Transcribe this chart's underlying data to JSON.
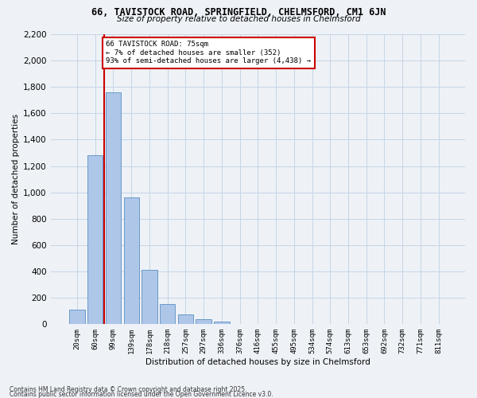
{
  "title1": "66, TAVISTOCK ROAD, SPRINGFIELD, CHELMSFORD, CM1 6JN",
  "title2": "Size of property relative to detached houses in Chelmsford",
  "xlabel": "Distribution of detached houses by size in Chelmsford",
  "ylabel": "Number of detached properties",
  "categories": [
    "20sqm",
    "60sqm",
    "99sqm",
    "139sqm",
    "178sqm",
    "218sqm",
    "257sqm",
    "297sqm",
    "336sqm",
    "376sqm",
    "416sqm",
    "455sqm",
    "495sqm",
    "534sqm",
    "574sqm",
    "613sqm",
    "653sqm",
    "692sqm",
    "732sqm",
    "771sqm",
    "811sqm"
  ],
  "values": [
    110,
    1280,
    1760,
    960,
    415,
    155,
    75,
    40,
    22,
    0,
    0,
    0,
    0,
    0,
    0,
    0,
    0,
    0,
    0,
    0,
    0
  ],
  "bar_color": "#aec6e8",
  "bar_edge_color": "#5a8fc2",
  "annotation_line1": "66 TAVISTOCK ROAD: 75sqm",
  "annotation_line2": "← 7% of detached houses are smaller (352)",
  "annotation_line3": "93% of semi-detached houses are larger (4,438) →",
  "vline_color": "#cc0000",
  "vline_x": 1.5,
  "ylim": [
    0,
    2200
  ],
  "yticks": [
    0,
    200,
    400,
    600,
    800,
    1000,
    1200,
    1400,
    1600,
    1800,
    2000,
    2200
  ],
  "grid_color": "#c5d5e5",
  "background_color": "#eef2f7",
  "footer1": "Contains HM Land Registry data © Crown copyright and database right 2025.",
  "footer2": "Contains public sector information licensed under the Open Government Licence v3.0."
}
